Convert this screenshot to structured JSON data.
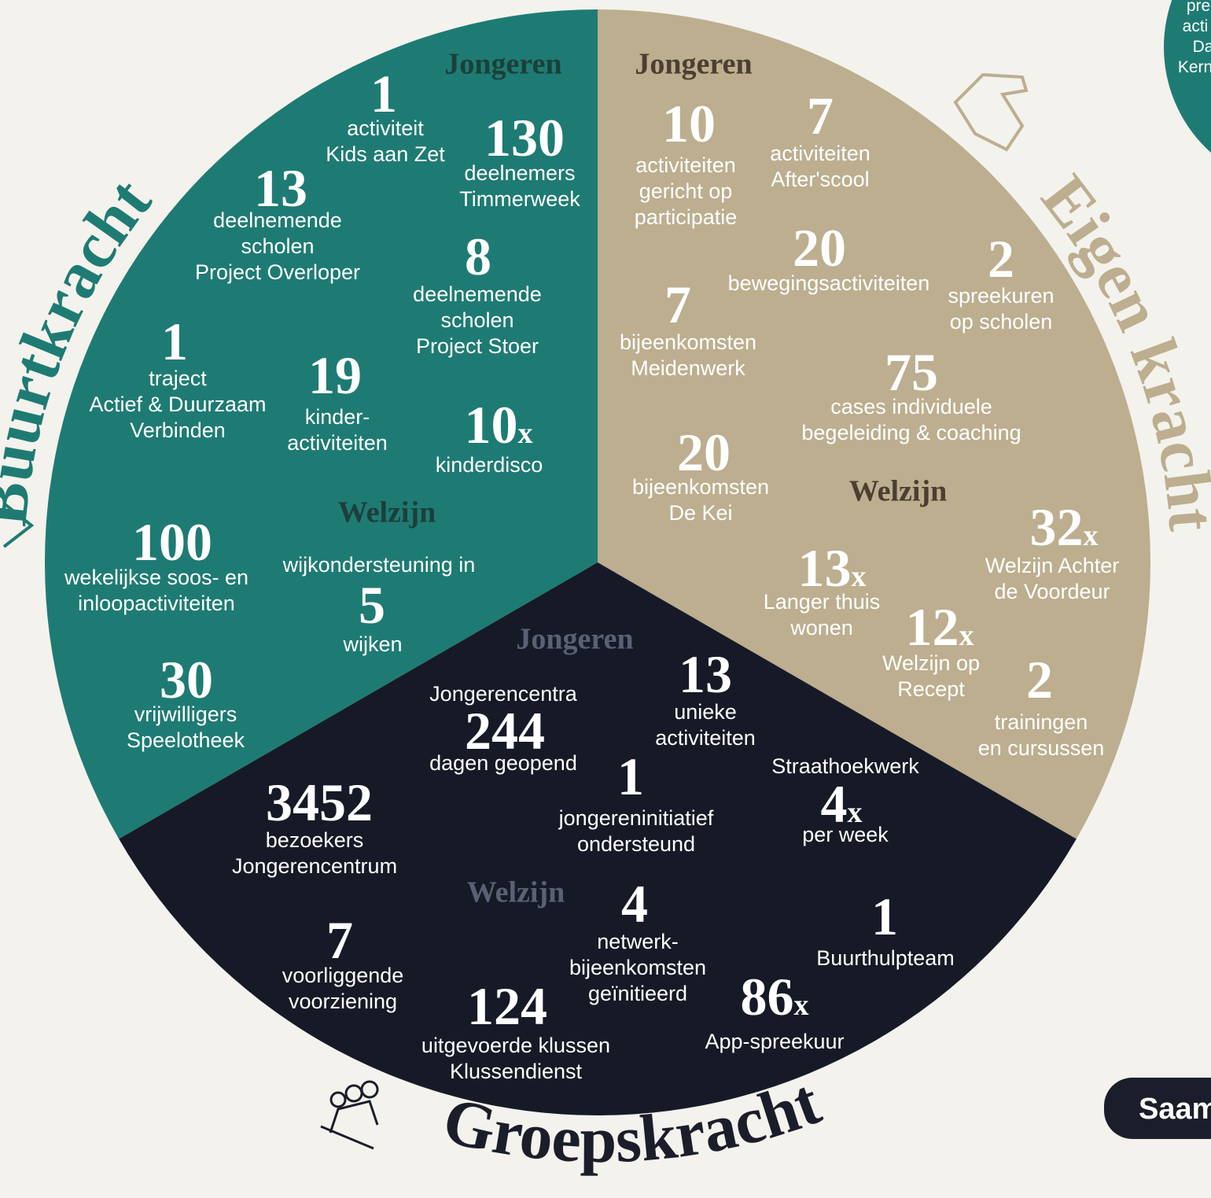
{
  "segments": [
    {
      "name": "Buurtkracht",
      "headings": [
        "Jongeren",
        "Welzijn"
      ],
      "items": [
        {
          "number": 1,
          "lines": [
            "activiteit",
            "Kids aan Zet"
          ]
        },
        {
          "number": 130,
          "lines": [
            "deelnemers",
            "Timmerweek"
          ]
        },
        {
          "number": 13,
          "lines": [
            "deelnemende",
            "scholen",
            "Project Overloper"
          ]
        },
        {
          "number": 8,
          "lines": [
            "deelnemende",
            "scholen",
            "Project Stoer"
          ]
        },
        {
          "number": 1,
          "lines": [
            "traject",
            "Actief & Duurzaam",
            "Verbinden"
          ]
        },
        {
          "number": 19,
          "lines": [
            "kinder-",
            "activiteiten"
          ]
        },
        {
          "number": 10,
          "suffix": "x",
          "lines": [
            "kinderdisco"
          ]
        },
        {
          "number": 100,
          "lines": [
            "wekelijkse soos- en",
            "inloopactiviteiten"
          ]
        },
        {
          "before": "wijkondersteuning in",
          "number": 5,
          "lines": [
            "wijken"
          ]
        },
        {
          "number": 30,
          "lines": [
            "vrijwilligers",
            "Speelotheek"
          ]
        }
      ]
    },
    {
      "name": "Eigen kracht",
      "headings": [
        "Jongeren",
        "Welzijn"
      ],
      "items": [
        {
          "number": 10,
          "lines": [
            "activiteiten",
            "gericht op",
            "participatie"
          ]
        },
        {
          "number": 7,
          "lines": [
            "activiteiten",
            "After'scool"
          ]
        },
        {
          "number": 20,
          "lines": [
            "bewegingsactiviteiten"
          ]
        },
        {
          "number": 2,
          "lines": [
            "spreekuren",
            "op scholen"
          ]
        },
        {
          "number": 7,
          "lines": [
            "bijeenkomsten",
            "Meidenwerk"
          ]
        },
        {
          "number": 75,
          "lines": [
            "cases individuele",
            "begeleiding & coaching"
          ]
        },
        {
          "number": 20,
          "lines": [
            "bijeenkomsten",
            "De Kei"
          ]
        },
        {
          "number": 32,
          "suffix": "x",
          "lines": [
            "Welzijn Achter",
            "de Voordeur"
          ]
        },
        {
          "number": 13,
          "suffix": "x",
          "lines": [
            "Langer thuis",
            "wonen"
          ]
        },
        {
          "number": 12,
          "suffix": "x",
          "lines": [
            "Welzijn op",
            "Recept"
          ]
        },
        {
          "number": 2,
          "lines": [
            "trainingen",
            "en cursussen"
          ]
        }
      ]
    },
    {
      "name": "Groepskracht",
      "headings": [
        "Jongeren",
        "Welzijn"
      ],
      "items": [
        {
          "before": "Jongerencentra",
          "number": 244,
          "lines": [
            "dagen geopend"
          ]
        },
        {
          "number": 13,
          "lines": [
            "unieke",
            "activiteiten"
          ]
        },
        {
          "number": 1,
          "lines": [
            "jongereninitiatief",
            "ondersteund"
          ]
        },
        {
          "before": "Straathoekwerk",
          "number": 4,
          "suffix": "x",
          "lines": [
            "per week"
          ]
        },
        {
          "number": 3452,
          "lines": [
            "bezoekers",
            "Jongerencentrum"
          ]
        },
        {
          "number": 4,
          "lines": [
            "netwerk-",
            "bijeenkomsten",
            "geïnitieerd"
          ]
        },
        {
          "number": 1,
          "lines": [
            "Buurthulpteam"
          ]
        },
        {
          "number": 7,
          "lines": [
            "voorliggende",
            "voorziening"
          ]
        },
        {
          "number": 124,
          "lines": [
            "uitgevoerde klussen",
            "Klussendienst"
          ]
        },
        {
          "number": 86,
          "suffix": "x",
          "lines": [
            "App-spreekuur"
          ]
        }
      ]
    }
  ],
  "edge_texts": {
    "top_right": [
      "pre",
      "acti",
      "Da",
      "Kern"
    ],
    "button": "Saam"
  }
}
